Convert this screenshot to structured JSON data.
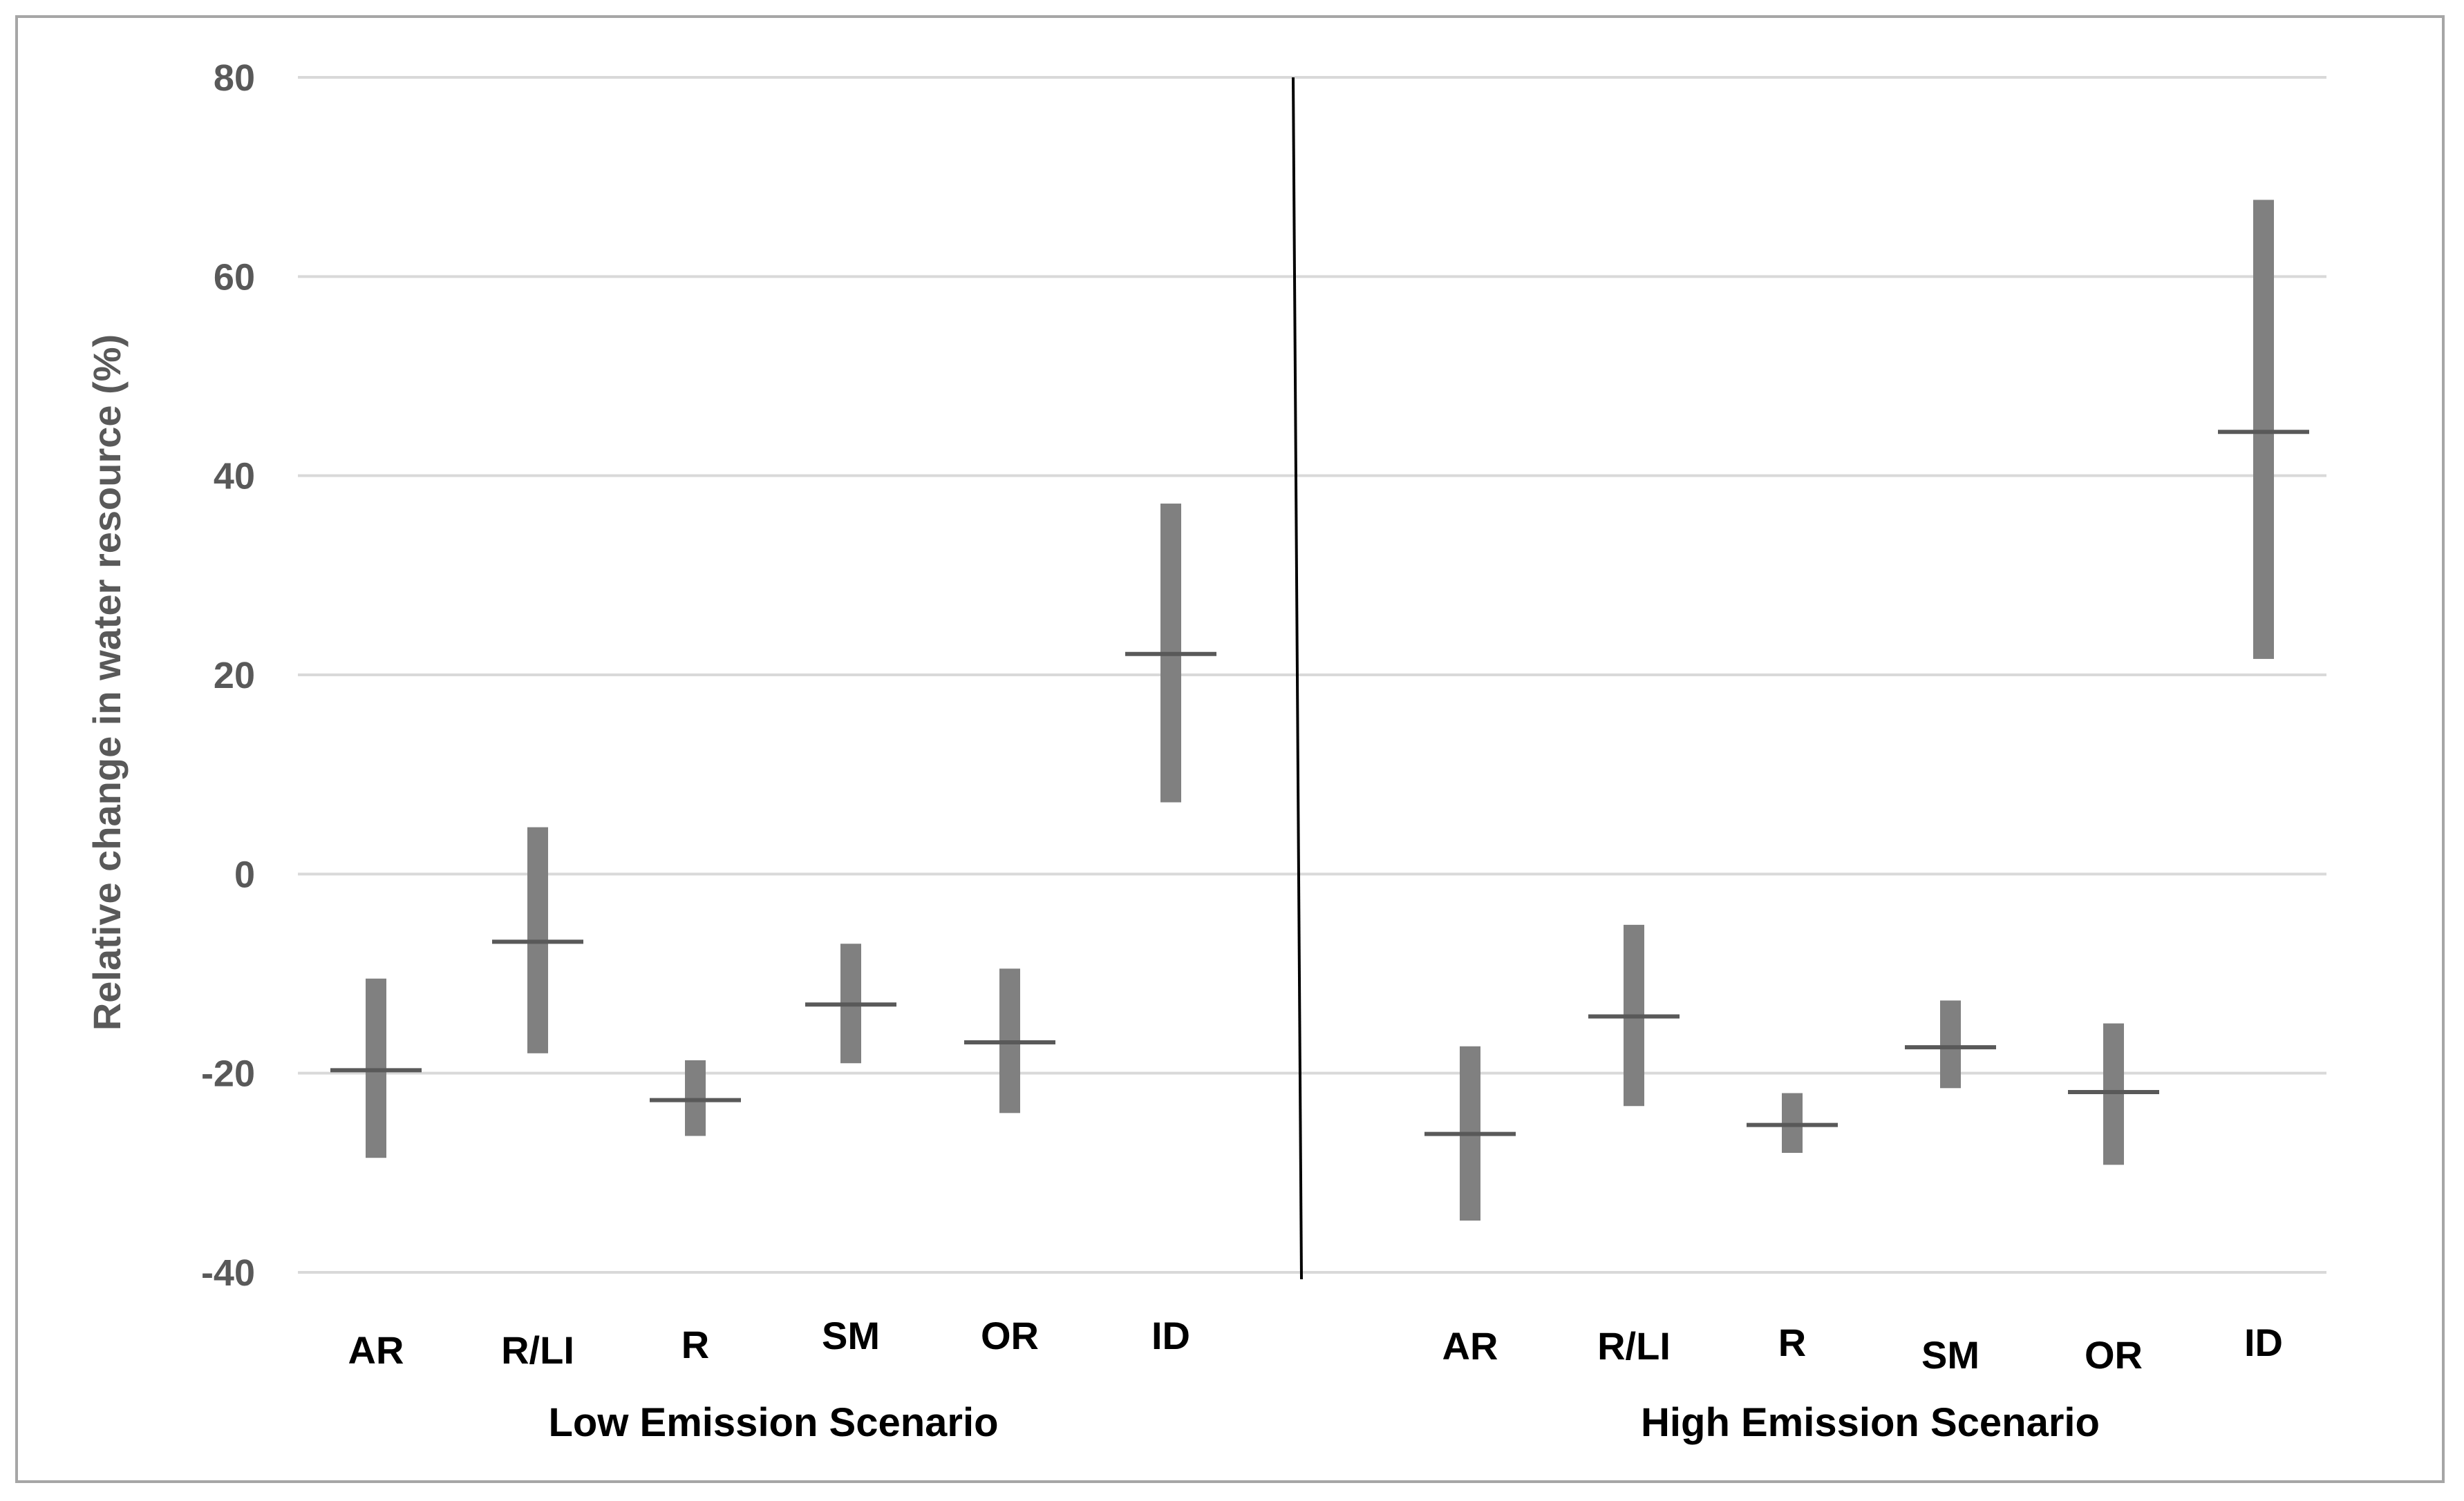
{
  "chart_data": {
    "type": "range",
    "ylabel": "Relative change in water resource (%)",
    "ylim": [
      -40,
      80
    ],
    "yticks": [
      80,
      60,
      40,
      20,
      0,
      -20,
      -40
    ],
    "grid": true,
    "colors": {
      "bar": "#808080",
      "median": "#595959",
      "grid": "#d9d9d9",
      "divider": "#000000",
      "frame": "#a6a6a6"
    },
    "groups": [
      {
        "label": "Low Emission Scenario",
        "items": [
          {
            "category": "AR",
            "low": -28.5,
            "high": -10.5,
            "median": -19.7
          },
          {
            "category": "R/LI",
            "low": -18.0,
            "high": 4.7,
            "median": -6.8
          },
          {
            "category": "R",
            "low": -26.3,
            "high": -18.7,
            "median": -22.7
          },
          {
            "category": "SM",
            "low": -19.0,
            "high": -7.0,
            "median": -13.1
          },
          {
            "category": "OR",
            "low": -24.0,
            "high": -9.5,
            "median": -16.9
          },
          {
            "category": "ID",
            "low": 7.2,
            "high": 37.2,
            "median": 22.1
          }
        ]
      },
      {
        "label": "High Emission Scenario",
        "items": [
          {
            "category": "AR",
            "low": -34.8,
            "high": -17.3,
            "median": -26.1
          },
          {
            "category": "R/LI",
            "low": -23.3,
            "high": -5.1,
            "median": -14.3
          },
          {
            "category": "R",
            "low": -28.0,
            "high": -22.0,
            "median": -25.2
          },
          {
            "category": "SM",
            "low": -21.5,
            "high": -12.7,
            "median": -17.4
          },
          {
            "category": "OR",
            "low": -29.2,
            "high": -15.0,
            "median": -21.9
          },
          {
            "category": "ID",
            "low": 21.6,
            "high": 67.7,
            "median": 44.4
          }
        ]
      }
    ]
  }
}
